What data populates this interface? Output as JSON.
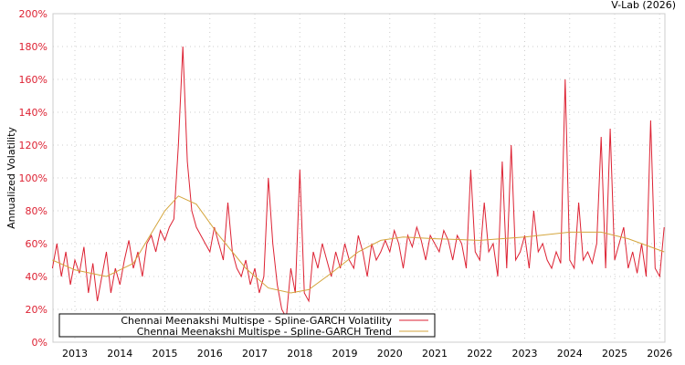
{
  "chart_data": {
    "type": "line",
    "credit": "V-Lab (2026)",
    "ylabel": "Annualized Volatility",
    "xlabel": "",
    "ylim": [
      0,
      200
    ],
    "xlim": [
      2012.5,
      2026.1
    ],
    "yticks": [
      0,
      20,
      40,
      60,
      80,
      100,
      120,
      140,
      160,
      180,
      200
    ],
    "ytick_labels": [
      "0%",
      "20%",
      "40%",
      "60%",
      "80%",
      "100%",
      "120%",
      "140%",
      "160%",
      "180%",
      "200%"
    ],
    "xticks": [
      2013,
      2014,
      2015,
      2016,
      2017,
      2018,
      2019,
      2020,
      2021,
      2022,
      2023,
      2024,
      2025,
      2026
    ],
    "xtick_labels": [
      "2013",
      "2014",
      "2015",
      "2016",
      "2017",
      "2018",
      "2019",
      "2020",
      "2021",
      "2022",
      "2023",
      "2024",
      "2025",
      "2026"
    ],
    "grid": true,
    "legend_position": "bottom-left",
    "series": [
      {
        "name": "Chennai Meenakshi Multispe - Spline-GARCH Volatility",
        "color": "#dd2233",
        "x_start": 2012.5,
        "x_step": 0.1,
        "values": [
          45,
          60,
          40,
          55,
          35,
          50,
          42,
          58,
          30,
          48,
          25,
          40,
          55,
          30,
          45,
          35,
          50,
          62,
          45,
          55,
          40,
          60,
          65,
          55,
          68,
          62,
          70,
          75,
          120,
          180,
          110,
          80,
          70,
          65,
          60,
          55,
          70,
          60,
          50,
          85,
          55,
          45,
          40,
          50,
          35,
          45,
          30,
          40,
          100,
          60,
          35,
          20,
          15,
          45,
          30,
          105,
          30,
          25,
          55,
          45,
          60,
          50,
          40,
          55,
          45,
          60,
          50,
          45,
          65,
          55,
          40,
          60,
          50,
          55,
          62,
          55,
          68,
          60,
          45,
          65,
          58,
          70,
          62,
          50,
          65,
          60,
          55,
          68,
          62,
          50,
          65,
          60,
          45,
          105,
          55,
          50,
          85,
          55,
          60,
          40,
          110,
          45,
          120,
          50,
          55,
          65,
          45,
          80,
          55,
          60,
          50,
          45,
          55,
          48,
          160,
          50,
          45,
          85,
          50,
          55,
          48,
          60,
          125,
          45,
          130,
          50,
          60,
          70,
          45,
          55,
          42,
          60,
          40,
          135,
          45,
          40,
          70
        ]
      },
      {
        "name": "Chennai Meenakshi Multispe - Spline-GARCH Trend",
        "color": "#d4a53c",
        "x": [
          2012.5,
          2013,
          2013.7,
          2014.3,
          2015,
          2015.3,
          2015.7,
          2016.2,
          2016.8,
          2017.3,
          2017.8,
          2018.2,
          2018.7,
          2019.3,
          2019.8,
          2020.3,
          2021,
          2022,
          2023,
          2024,
          2024.7,
          2025.3,
          2026.1
        ],
        "values": [
          50,
          44,
          40,
          48,
          80,
          89,
          84,
          65,
          45,
          33,
          30,
          32,
          42,
          55,
          62,
          64,
          63,
          62,
          64,
          67,
          67,
          63,
          55
        ]
      }
    ]
  }
}
